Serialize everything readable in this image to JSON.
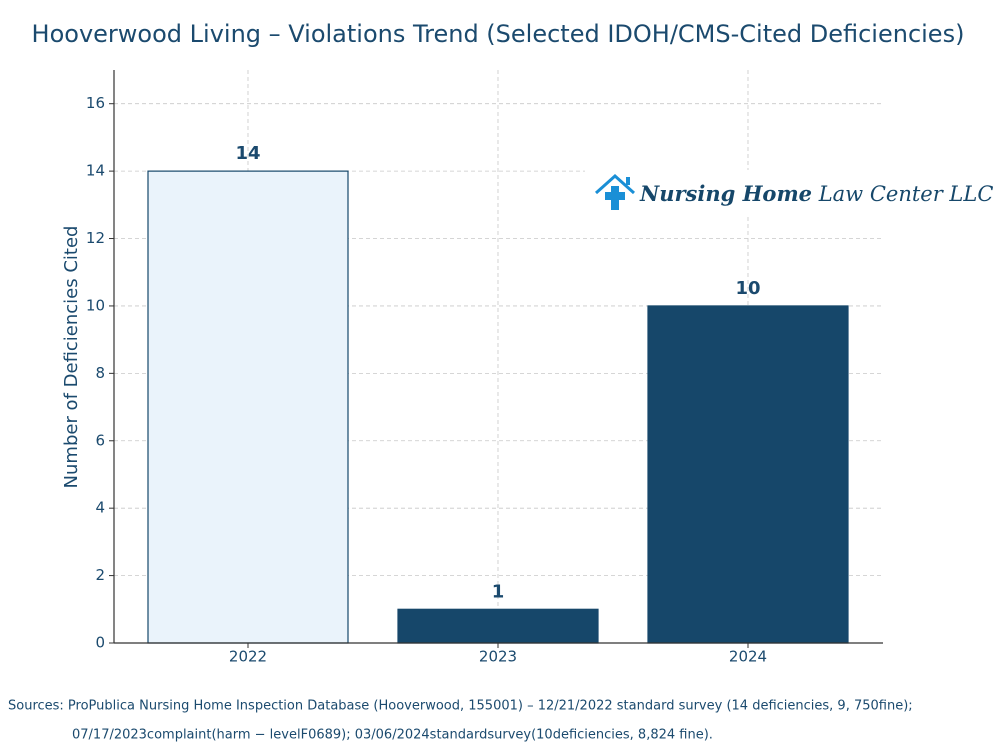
{
  "chart_data": {
    "type": "bar",
    "title": "Hooverwood Living – Violations Trend (Selected IDOH/CMS-Cited Deficiencies)",
    "ylabel": "Number of Deficiencies Cited",
    "categories": [
      "2022",
      "2023",
      "2024"
    ],
    "values": [
      14,
      1,
      10
    ],
    "colors": [
      "#eaf3fb",
      "#16476a",
      "#16476a"
    ],
    "edgecolor": "#16476a",
    "ylim": [
      0,
      17
    ],
    "yticks": [
      0,
      2,
      4,
      6,
      8,
      10,
      12,
      14,
      16
    ],
    "grid": true,
    "logo": {
      "bold": "Nursing Home",
      "rest": "Law Center LLC"
    },
    "footnote": [
      "Sources: ProPublica Nursing Home Inspection Database (Hooverwood, 155001) – 12/21/2022 standard survey (14 deficiencies, 9, 750fine);",
      "07/17/2023complaint(harm − levelF0689); 03/06/2024standardsurvey(10deficiencies, 8,824 fine)."
    ]
  }
}
